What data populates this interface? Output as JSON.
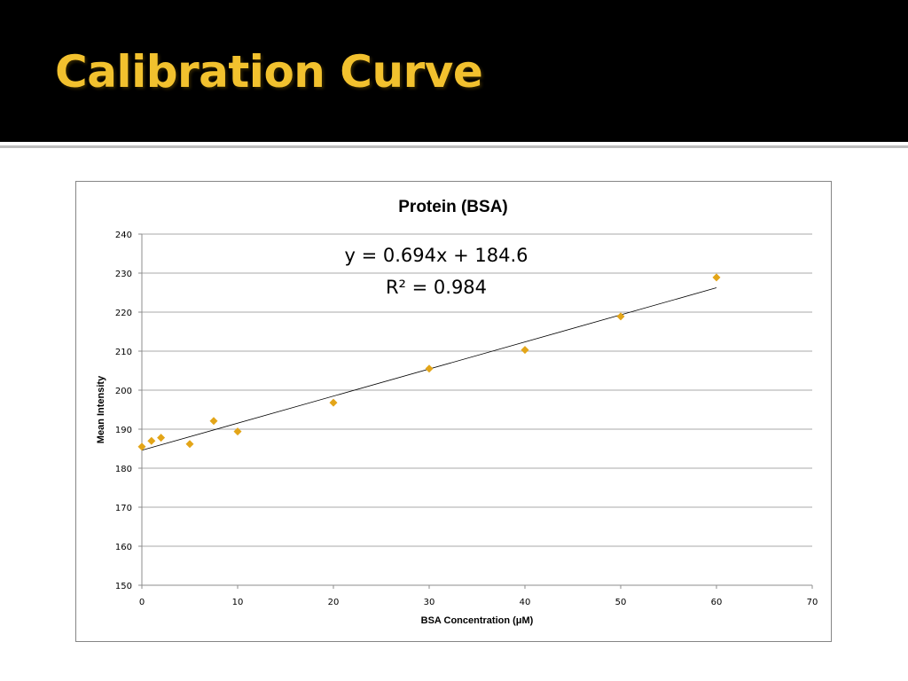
{
  "slide": {
    "title": "Calibration Curve",
    "title_color": "#f2c12e",
    "header_background": "#000000"
  },
  "chart_data": {
    "type": "scatter",
    "title": "Protein (BSA)",
    "xlabel": "BSA Concentration (μM)",
    "ylabel": "Mean Intensity",
    "xlim": [
      0,
      70
    ],
    "ylim": [
      150,
      240
    ],
    "x_ticks": [
      0,
      10,
      20,
      30,
      40,
      50,
      60,
      70
    ],
    "y_ticks": [
      150,
      160,
      170,
      180,
      190,
      200,
      210,
      220,
      230,
      240
    ],
    "grid": "horizontal",
    "legend": "none",
    "marker": "diamond",
    "marker_color": "#e3a518",
    "series": [
      {
        "x": [
          0,
          1,
          2,
          5,
          7.5,
          10,
          20,
          30,
          40,
          50,
          60
        ],
        "y": [
          185.5,
          187,
          187.8,
          186.2,
          192.1,
          189.4,
          196.8,
          205.5,
          210.3,
          218.9,
          228.9
        ]
      }
    ],
    "trendline": {
      "type": "linear",
      "slope": 0.694,
      "intercept": 184.6,
      "x_range": [
        0,
        60
      ],
      "equation_label": "y = 0.694x + 184.6",
      "r2_label": "R² = 0.984"
    }
  }
}
